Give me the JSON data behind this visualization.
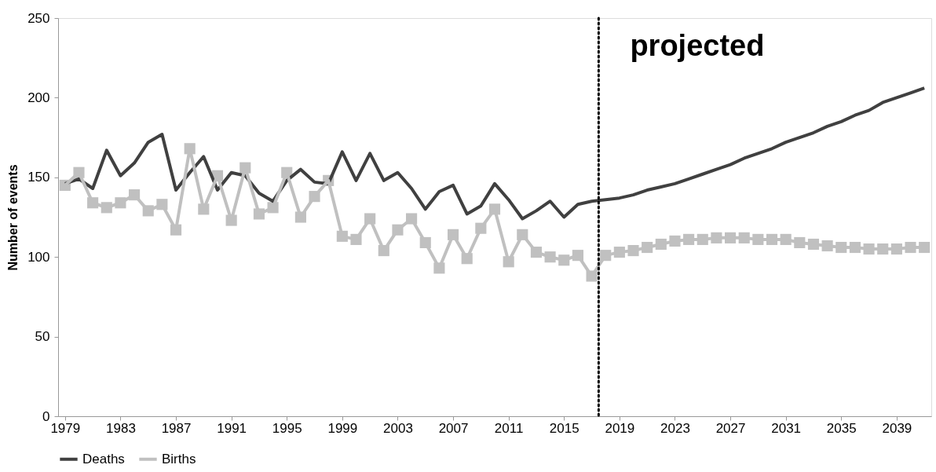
{
  "chart_data": {
    "type": "line",
    "ylabel": "Number of events",
    "x": [
      1979,
      1980,
      1981,
      1982,
      1983,
      1984,
      1985,
      1986,
      1987,
      1988,
      1989,
      1990,
      1991,
      1992,
      1993,
      1994,
      1995,
      1996,
      1997,
      1998,
      1999,
      2000,
      2001,
      2002,
      2003,
      2004,
      2005,
      2006,
      2007,
      2008,
      2009,
      2010,
      2011,
      2012,
      2013,
      2014,
      2015,
      2016,
      2017,
      2018,
      2019,
      2020,
      2021,
      2022,
      2023,
      2024,
      2025,
      2026,
      2027,
      2028,
      2029,
      2030,
      2031,
      2032,
      2033,
      2034,
      2035,
      2036,
      2037,
      2038,
      2039,
      2040,
      2041
    ],
    "series": [
      {
        "name": "Deaths",
        "color": "#404040",
        "marker": "none",
        "values": [
          146,
          149,
          143,
          167,
          151,
          159,
          172,
          177,
          142,
          153,
          163,
          142,
          153,
          151,
          140,
          135,
          148,
          155,
          147,
          146,
          166,
          148,
          165,
          148,
          153,
          143,
          130,
          141,
          145,
          127,
          132,
          146,
          136,
          124,
          129,
          135,
          125,
          133,
          135,
          136,
          137,
          139,
          142,
          144,
          146,
          149,
          152,
          155,
          158,
          162,
          165,
          168,
          172,
          175,
          178,
          182,
          185,
          189,
          192,
          197,
          200,
          203,
          206
        ]
      },
      {
        "name": "Births",
        "color": "#c0c0c0",
        "marker": "square",
        "values": [
          145,
          153,
          134,
          131,
          134,
          139,
          129,
          133,
          117,
          168,
          130,
          151,
          123,
          156,
          127,
          131,
          153,
          125,
          138,
          148,
          113,
          111,
          124,
          104,
          117,
          124,
          109,
          93,
          114,
          99,
          118,
          130,
          97,
          114,
          103,
          100,
          98,
          101,
          88,
          101,
          103,
          104,
          106,
          108,
          110,
          111,
          111,
          112,
          112,
          112,
          111,
          111,
          111,
          109,
          108,
          107,
          106,
          106,
          105,
          105,
          105,
          106,
          106
        ]
      }
    ],
    "xlim": [
      1978.5,
      2041.5
    ],
    "xticks": [
      1979,
      1983,
      1987,
      1991,
      1995,
      1999,
      2003,
      2007,
      2011,
      2015,
      2019,
      2023,
      2027,
      2031,
      2035,
      2039
    ],
    "ylim": [
      0,
      250
    ],
    "yticks": [
      0,
      50,
      100,
      150,
      200,
      250
    ],
    "ref_lines": [
      {
        "axis": "x",
        "value": 2017.5,
        "color": "#000000",
        "line_style": "dotted"
      }
    ],
    "annotations": [
      "projected"
    ],
    "grid": false,
    "legend": "bottom",
    "line_style": "solid"
  }
}
